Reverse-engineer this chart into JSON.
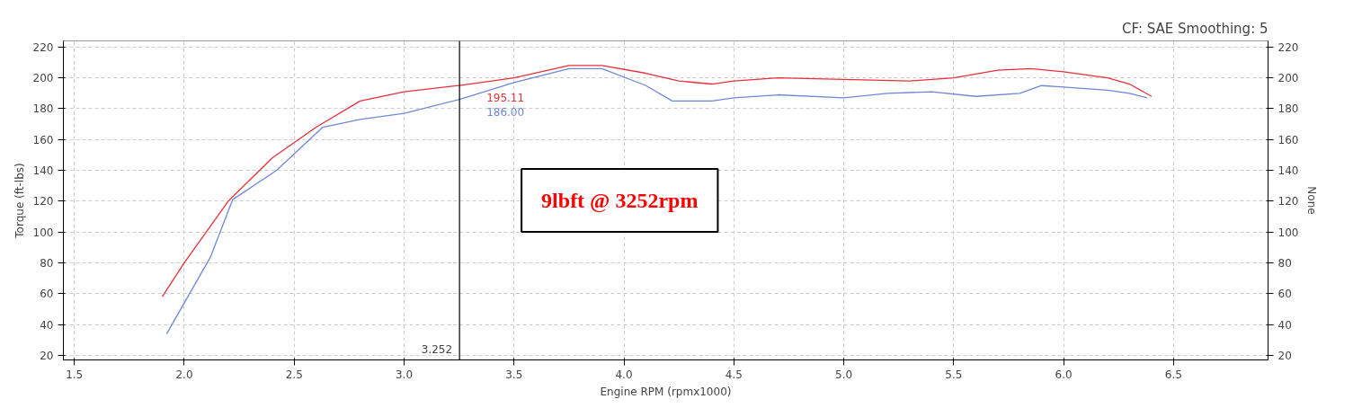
{
  "chart_data": {
    "type": "line",
    "subtitle": "CF: SAE Smoothing: 5",
    "xlabel": "Engine RPM (rpmx1000)",
    "ylabel": "Torque (ft-lbs)",
    "y2label": "None",
    "xlim": [
      1.45,
      6.93
    ],
    "ylim": [
      17,
      224
    ],
    "y2lim": [
      17,
      224
    ],
    "xticks": [
      1.5,
      {
        "value": 2,
        "label": "2.0"
      },
      2.5,
      {
        "value": 3,
        "label": "3.0"
      },
      3.5,
      {
        "value": 4,
        "label": "4.0"
      },
      4.5,
      {
        "value": 5,
        "label": "5.0"
      },
      5.5,
      {
        "value": 6,
        "label": "6.0"
      },
      6.5
    ],
    "yticks": [
      20,
      40,
      60,
      80,
      100,
      120,
      140,
      160,
      180,
      200,
      220
    ],
    "y2ticks": [
      20,
      40,
      60,
      80,
      100,
      120,
      140,
      160,
      180,
      200,
      220
    ],
    "grid": true,
    "line_style": "solid",
    "series": [
      {
        "color": "#e8303a",
        "x": [
          1.9,
          2.0,
          2.2,
          2.4,
          2.6,
          2.8,
          3.0,
          3.252,
          3.5,
          3.75,
          3.9,
          4.1,
          4.25,
          4.4,
          4.5,
          4.7,
          5.0,
          5.3,
          5.5,
          5.7,
          5.85,
          6.0,
          6.2,
          6.3,
          6.4
        ],
        "values": [
          58,
          80,
          120,
          148,
          168,
          185,
          191,
          195.11,
          200,
          208,
          208,
          203,
          198,
          196,
          198,
          200,
          199,
          198,
          200,
          205,
          206,
          204,
          200,
          196,
          188
        ]
      },
      {
        "color": "#6f87d8",
        "x": [
          1.92,
          2.12,
          2.22,
          2.42,
          2.63,
          2.8,
          3.0,
          3.252,
          3.5,
          3.75,
          3.9,
          4.1,
          4.22,
          4.4,
          4.5,
          4.7,
          5.0,
          5.2,
          5.4,
          5.6,
          5.8,
          5.9,
          6.0,
          6.2,
          6.3,
          6.38
        ],
        "values": [
          34,
          84,
          121,
          140,
          168,
          173,
          177,
          186.0,
          197,
          206,
          206,
          195,
          185,
          185,
          187,
          189,
          187,
          190,
          191,
          188,
          190,
          195,
          194,
          192,
          190,
          187
        ]
      }
    ],
    "ref_lines": [
      {
        "axis": "x",
        "value": 3.252,
        "label": "3.252",
        "color": "#000000"
      }
    ],
    "annotations": [
      {
        "text": "195.11",
        "x": 3.252,
        "y": 195.11
      },
      {
        "text": "186.00",
        "x": 3.252,
        "y": 186.0
      },
      "9lbft @ 3252rpm"
    ]
  }
}
